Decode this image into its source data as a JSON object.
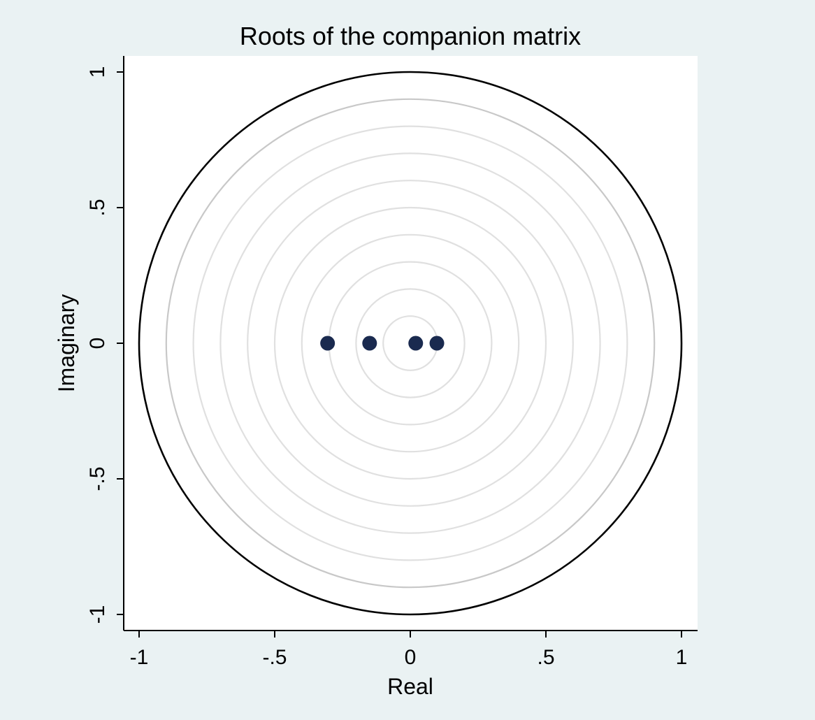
{
  "chart_data": {
    "type": "scatter",
    "title": "Roots of the companion matrix",
    "xlabel": "Real",
    "ylabel": "Imaginary",
    "xlim": [
      -1,
      1
    ],
    "ylim": [
      -1,
      1
    ],
    "xticks": [
      {
        "value": -1,
        "label": "-1"
      },
      {
        "value": -0.5,
        "label": "-.5"
      },
      {
        "value": 0,
        "label": "0"
      },
      {
        "value": 0.5,
        "label": ".5"
      },
      {
        "value": 1,
        "label": "1"
      }
    ],
    "yticks": [
      {
        "value": -1,
        "label": "-1"
      },
      {
        "value": -0.5,
        "label": "-.5"
      },
      {
        "value": 0,
        "label": "0"
      },
      {
        "value": 0.5,
        "label": ".5"
      },
      {
        "value": 1,
        "label": "1"
      }
    ],
    "unit_circle": true,
    "grid_circles_radii": [
      0.1,
      0.2,
      0.3,
      0.4,
      0.5,
      0.6,
      0.7,
      0.8,
      0.9
    ],
    "points": [
      {
        "x": -0.305,
        "y": 0
      },
      {
        "x": -0.15,
        "y": 0
      },
      {
        "x": 0.02,
        "y": 0
      },
      {
        "x": 0.098,
        "y": 0
      }
    ],
    "colors": {
      "background": "#eaf2f3",
      "plot_region": "#ffffff",
      "marker": "#1a2a4f",
      "unit_circle": "#000000",
      "grid_light": "#e0e0e0",
      "grid_mid": "#c8c8c8"
    }
  }
}
